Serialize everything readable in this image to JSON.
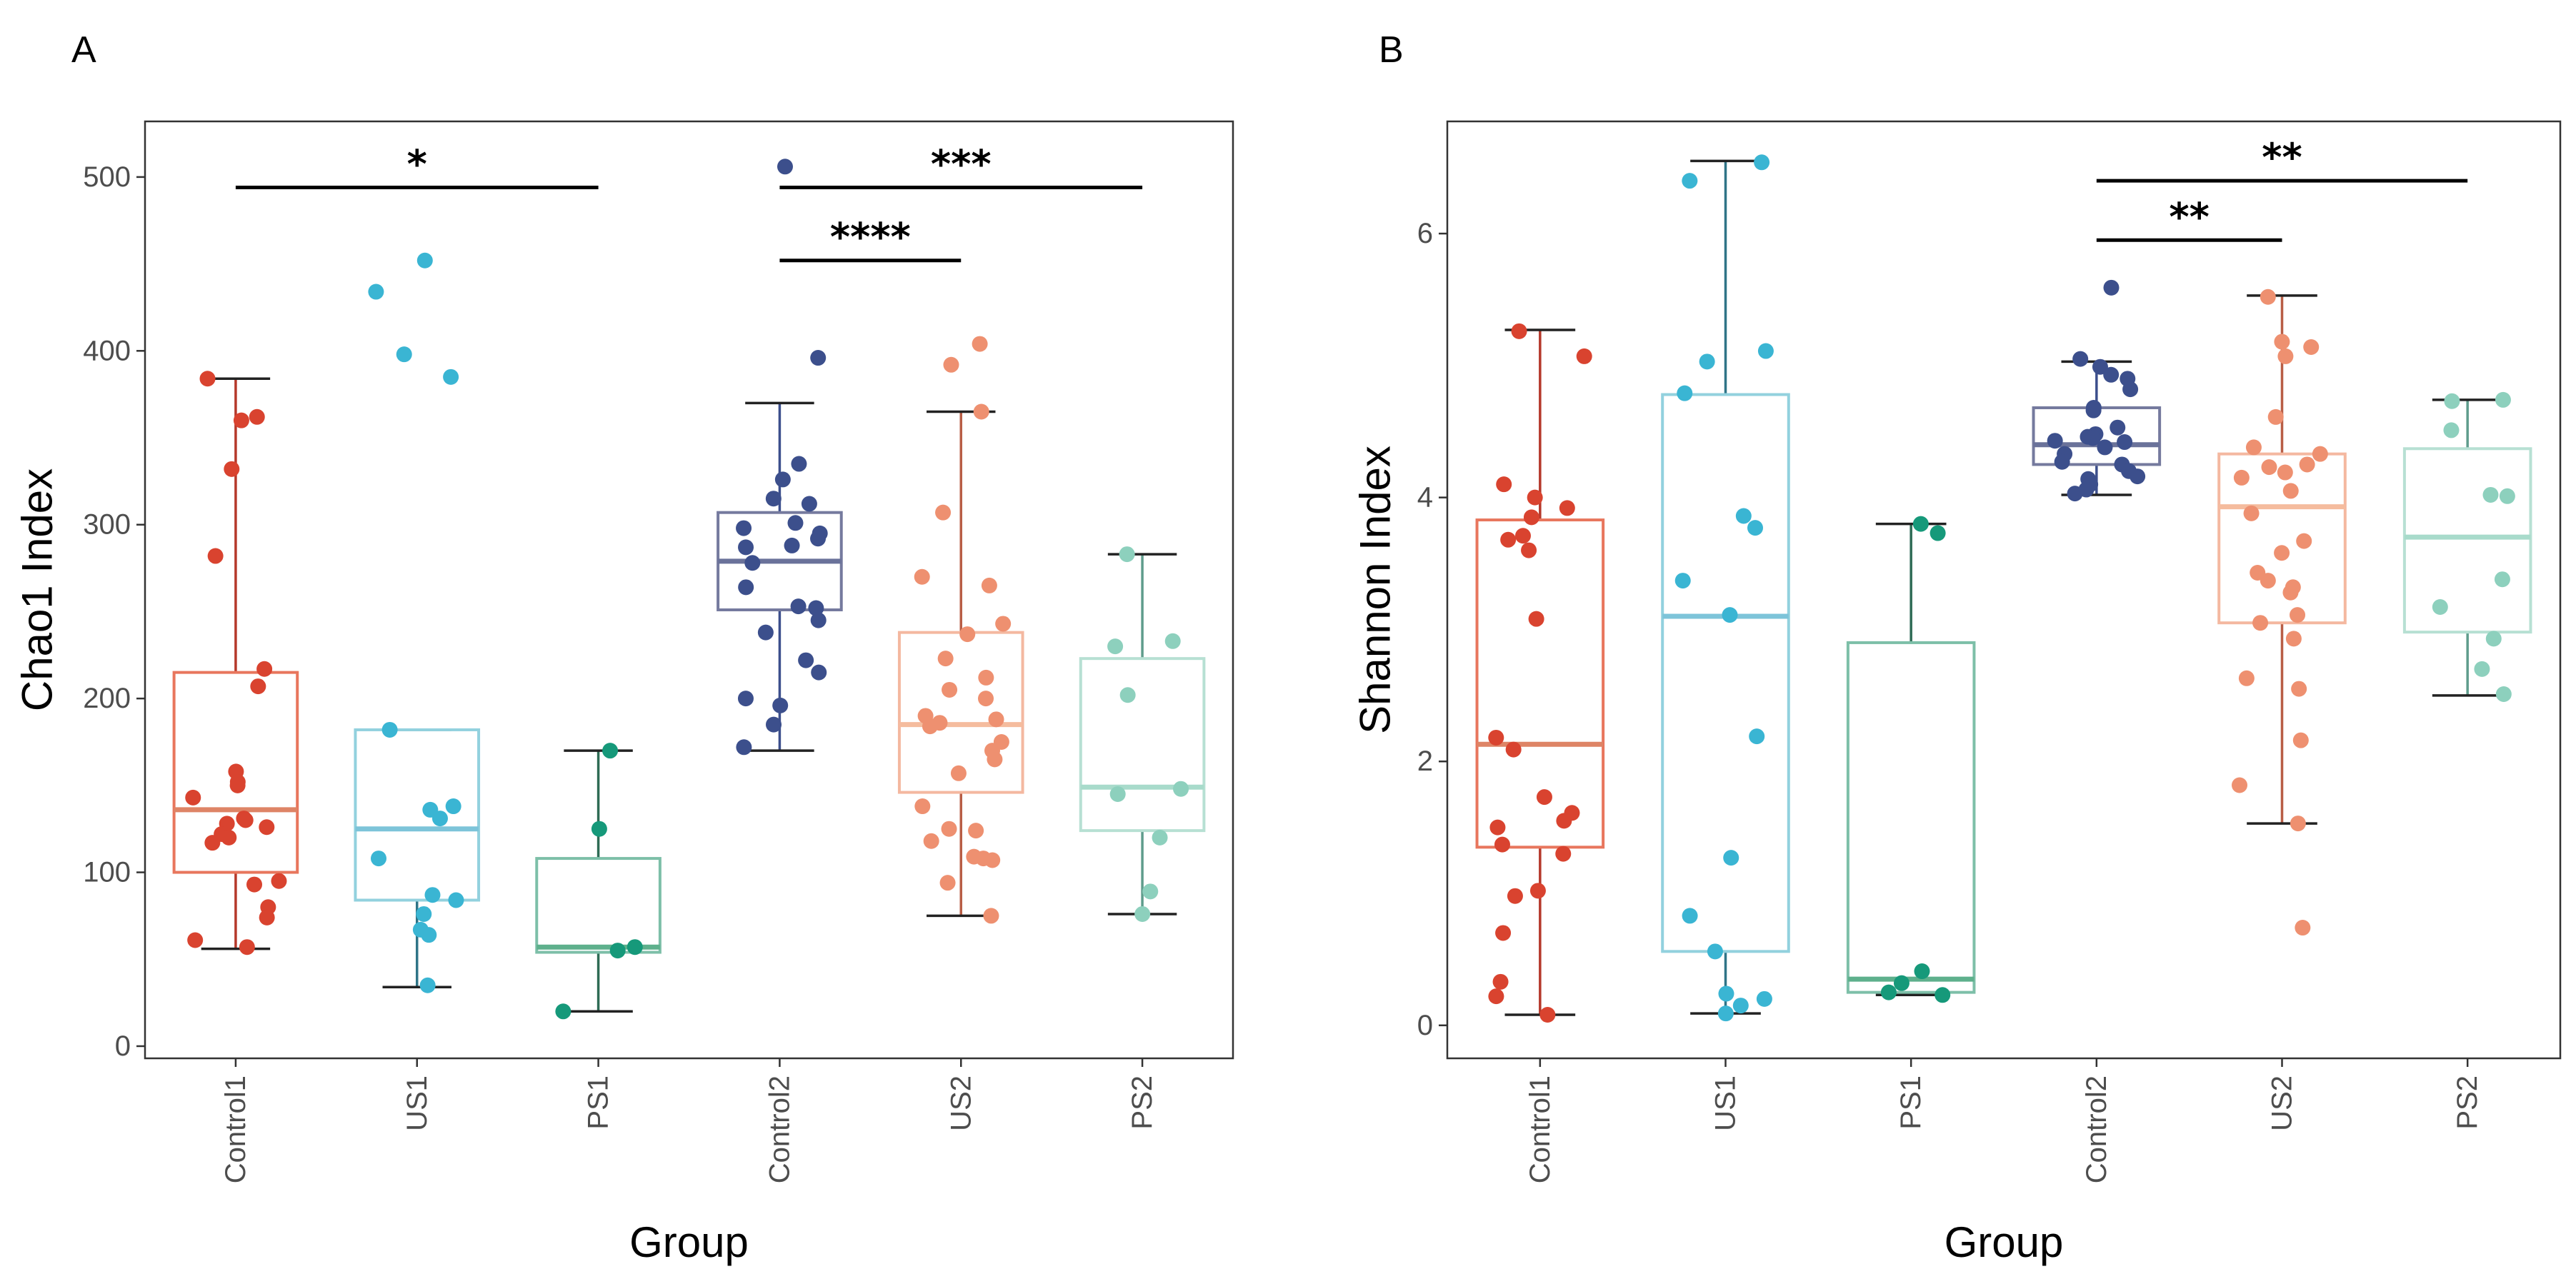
{
  "figure": {
    "colors": {
      "Control1": "#d9432f",
      "US1": "#3ab5d3",
      "PS1": "#16997a",
      "Control2": "#3c4f8c",
      "US2": "#ee9070",
      "PS2": "#8dd0bd"
    },
    "box_colors": {
      "Control1": "#e8765d",
      "US1": "#92d1de",
      "PS1": "#7dbfa8",
      "Control2": "#757a9e",
      "US2": "#f4b8a0",
      "PS2": "#b7e0d3"
    },
    "whisker_colors": {
      "Control1": "#b5382a",
      "US1": "#2f7487",
      "PS1": "#2e6b55",
      "Control2": "#3c4f8c",
      "US2": "#b85e46",
      "PS2": "#5f9c8c"
    },
    "median_colors": {
      "Control1": "#de8466",
      "US1": "#7dc4d9",
      "PS1": "#5eb08c",
      "Control2": "#6a729a",
      "US2": "#f5bc9e",
      "PS2": "#a8dbcb"
    }
  },
  "chart_data": [
    {
      "panel": "A",
      "type": "box",
      "xlabel": "Group",
      "ylabel": "Chao1  Index",
      "categories": [
        "Control1",
        "US1",
        "PS1",
        "Control2",
        "US2",
        "PS2"
      ],
      "ylim": [
        -7,
        532
      ],
      "yticks": [
        0,
        100,
        200,
        300,
        400,
        500
      ],
      "ytick_labels": [
        "0",
        "100",
        "200",
        "300",
        "400",
        "500"
      ],
      "boxes": [
        {
          "group": "Control1",
          "whisker_low": 56,
          "q1": 100,
          "median": 136,
          "q3": 215,
          "whisker_high": 384
        },
        {
          "group": "US1",
          "whisker_low": 34,
          "q1": 84,
          "median": 125,
          "q3": 182,
          "whisker_high": 182
        },
        {
          "group": "PS1",
          "whisker_low": 20,
          "q1": 54,
          "median": 57,
          "q3": 108,
          "whisker_high": 170
        },
        {
          "group": "Control2",
          "whisker_low": 170,
          "q1": 251,
          "median": 279,
          "q3": 307,
          "whisker_high": 370
        },
        {
          "group": "US2",
          "whisker_low": 75,
          "q1": 146,
          "median": 185,
          "q3": 238,
          "whisker_high": 365
        },
        {
          "group": "PS2",
          "whisker_low": 76,
          "q1": 124,
          "median": 149,
          "q3": 223,
          "whisker_high": 283
        }
      ],
      "points": [
        {
          "group": "Control1",
          "values": [
            384,
            362,
            360,
            332,
            282,
            217,
            207,
            158,
            152,
            150,
            143,
            131,
            130,
            128,
            126,
            122,
            120,
            117,
            95,
            93,
            80,
            74,
            61,
            57
          ]
        },
        {
          "group": "US1",
          "values": [
            452,
            434,
            398,
            385,
            182,
            138,
            136,
            131,
            108,
            87,
            84,
            76,
            67,
            64,
            35
          ]
        },
        {
          "group": "PS1",
          "values": [
            170,
            125,
            57,
            55,
            20
          ]
        },
        {
          "group": "Control2",
          "values": [
            506,
            396,
            335,
            326,
            315,
            312,
            301,
            298,
            295,
            292,
            288,
            287,
            278,
            264,
            253,
            252,
            245,
            238,
            222,
            215,
            200,
            196,
            185,
            172
          ]
        },
        {
          "group": "US2",
          "values": [
            404,
            392,
            365,
            307,
            270,
            265,
            243,
            237,
            223,
            212,
            205,
            200,
            190,
            188,
            186,
            184,
            175,
            170,
            165,
            157,
            138,
            125,
            124,
            118,
            109,
            108,
            107,
            94,
            75
          ]
        },
        {
          "group": "PS2",
          "values": [
            283,
            233,
            230,
            202,
            148,
            145,
            120,
            89,
            76
          ]
        }
      ],
      "significance": [
        {
          "from": "Control1",
          "to": "PS1",
          "label": "*",
          "y": 494
        },
        {
          "from": "Control2",
          "to": "PS2",
          "label": "***",
          "y": 494
        },
        {
          "from": "Control2",
          "to": "US2",
          "label": "****",
          "y": 452
        }
      ]
    },
    {
      "panel": "B",
      "type": "box",
      "xlabel": "Group",
      "ylabel": "Shannon  Index",
      "categories": [
        "Control1",
        "US1",
        "PS1",
        "Control2",
        "US2",
        "PS2"
      ],
      "ylim": [
        -0.25,
        6.85
      ],
      "yticks": [
        0,
        2,
        4,
        6
      ],
      "ytick_labels": [
        "0",
        "2",
        "4",
        "6"
      ],
      "boxes": [
        {
          "group": "Control1",
          "whisker_low": 0.08,
          "q1": 1.35,
          "median": 2.13,
          "q3": 3.83,
          "whisker_high": 5.27
        },
        {
          "group": "US1",
          "whisker_low": 0.09,
          "q1": 0.56,
          "median": 3.1,
          "q3": 4.78,
          "whisker_high": 6.55
        },
        {
          "group": "PS1",
          "whisker_low": 0.23,
          "q1": 0.25,
          "median": 0.35,
          "q3": 2.9,
          "whisker_high": 3.8
        },
        {
          "group": "Control2",
          "whisker_low": 4.02,
          "q1": 4.25,
          "median": 4.4,
          "q3": 4.68,
          "whisker_high": 5.03
        },
        {
          "group": "US2",
          "whisker_low": 1.53,
          "q1": 3.05,
          "median": 3.93,
          "q3": 4.33,
          "whisker_high": 5.53
        },
        {
          "group": "PS2",
          "whisker_low": 2.5,
          "q1": 2.98,
          "median": 3.7,
          "q3": 4.37,
          "whisker_high": 4.74
        }
      ],
      "points": [
        {
          "group": "Control1",
          "values": [
            5.26,
            5.07,
            4.1,
            4.0,
            3.92,
            3.85,
            3.71,
            3.68,
            3.6,
            3.08,
            2.18,
            2.09,
            1.73,
            1.61,
            1.55,
            1.5,
            1.37,
            1.3,
            1.02,
            0.98,
            0.7,
            0.33,
            0.22,
            0.08
          ]
        },
        {
          "group": "US1",
          "values": [
            6.54,
            6.4,
            5.11,
            5.03,
            4.79,
            3.86,
            3.77,
            3.37,
            3.11,
            2.19,
            1.27,
            0.83,
            0.56,
            0.24,
            0.2,
            0.15,
            0.09
          ]
        },
        {
          "group": "PS1",
          "values": [
            3.8,
            3.73,
            0.41,
            0.32,
            0.25,
            0.23
          ]
        },
        {
          "group": "Control2",
          "values": [
            5.59,
            5.05,
            4.99,
            4.93,
            4.9,
            4.82,
            4.68,
            4.66,
            4.53,
            4.48,
            4.46,
            4.45,
            4.43,
            4.42,
            4.38,
            4.33,
            4.27,
            4.25,
            4.2,
            4.16,
            4.14,
            4.1,
            4.06,
            4.03
          ]
        },
        {
          "group": "US2",
          "values": [
            5.52,
            5.18,
            5.14,
            5.07,
            4.61,
            4.38,
            4.33,
            4.25,
            4.23,
            4.19,
            4.15,
            4.05,
            3.88,
            3.67,
            3.58,
            3.43,
            3.37,
            3.32,
            3.28,
            3.11,
            3.05,
            2.93,
            2.63,
            2.55,
            2.16,
            1.82,
            1.53,
            0.74
          ]
        },
        {
          "group": "PS2",
          "values": [
            4.74,
            4.73,
            4.51,
            4.02,
            4.01,
            3.38,
            3.17,
            2.93,
            2.7,
            2.51
          ]
        }
      ],
      "significance": [
        {
          "from": "Control2",
          "to": "US2",
          "label": "**",
          "y": 5.95
        },
        {
          "from": "Control2",
          "to": "PS2",
          "label": "**",
          "y": 6.4
        }
      ]
    }
  ]
}
